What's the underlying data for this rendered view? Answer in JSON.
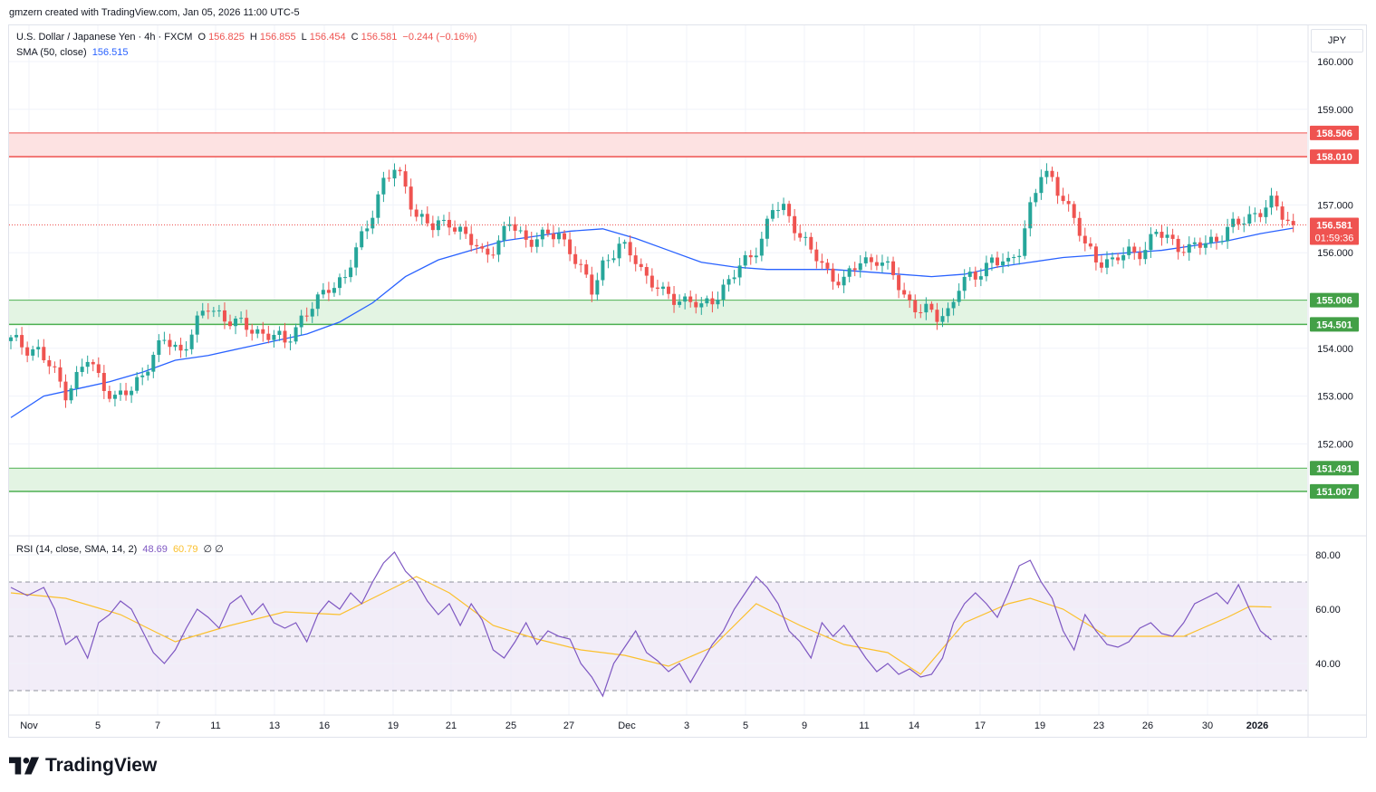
{
  "header": {
    "attribution": "gmzern created with TradingView.com, Jan 05, 2026 11:00 UTC-5"
  },
  "legend": {
    "symbol": "U.S. Dollar / Japanese Yen · 4h · FXCM",
    "o_label": "O",
    "o_value": "156.825",
    "h_label": "H",
    "h_value": "156.855",
    "l_label": "L",
    "l_value": "156.454",
    "c_label": "C",
    "c_value": "156.581",
    "change": "−0.244 (−0.16%)",
    "sma_label": "SMA (50, close)",
    "sma_value": "156.515",
    "rsi_label": "RSI (14, close, SMA, 14, 2)",
    "rsi_value": "48.69",
    "rsi_ma_value": "60.79",
    "rsi_extra": "∅ ∅"
  },
  "currency_button": "JPY",
  "brand": "TradingView",
  "colors": {
    "bull": "#26a69a",
    "bear": "#ef5350",
    "sma": "#2962ff",
    "rsi": "#7e57c2",
    "rsi_ma": "#fbc02d",
    "resistance_zone": "#fde2e2",
    "support_zone": "#e3f4e3"
  },
  "chart_data": [
    {
      "type": "candlestick",
      "title": "U.S. Dollar / Japanese Yen · 4h · FXCM",
      "ylim": [
        150.0,
        160.5
      ],
      "y_ticks": [
        "160.000",
        "159.000",
        "157.000",
        "156.000",
        "154.000",
        "153.000",
        "152.000"
      ],
      "x_ticks": [
        "Nov",
        "5",
        "7",
        "11",
        "13",
        "16",
        "19",
        "21",
        "25",
        "27",
        "Dec",
        "3",
        "5",
        "9",
        "11",
        "14",
        "17",
        "19",
        "23",
        "26",
        "30",
        "2026"
      ],
      "grid": true,
      "zones": [
        {
          "name": "resistance",
          "low": 158.01,
          "high": 158.506,
          "low_label": "158.010",
          "high_label": "158.506",
          "color": "red"
        },
        {
          "name": "support-1",
          "low": 154.501,
          "high": 155.006,
          "low_label": "154.501",
          "high_label": "155.006",
          "color": "green"
        },
        {
          "name": "support-2",
          "low": 151.007,
          "high": 151.491,
          "low_label": "151.007",
          "high_label": "151.491",
          "color": "green"
        }
      ],
      "last_price": {
        "value": 156.581,
        "label": "156.581",
        "countdown": "01:59:36"
      },
      "close_path": [
        [
          0,
          154.15
        ],
        [
          5,
          153.95
        ],
        [
          8,
          153.45
        ],
        [
          10,
          153.1
        ],
        [
          12,
          153.4
        ],
        [
          14,
          153.75
        ],
        [
          16,
          153.4
        ],
        [
          19,
          152.95
        ],
        [
          22,
          153.1
        ],
        [
          25,
          153.7
        ],
        [
          28,
          154.15
        ],
        [
          31,
          153.95
        ],
        [
          33,
          154.35
        ],
        [
          36,
          154.85
        ],
        [
          38,
          154.75
        ],
        [
          41,
          154.5
        ],
        [
          44,
          154.4
        ],
        [
          47,
          154.3
        ],
        [
          50,
          154.1
        ],
        [
          53,
          154.65
        ],
        [
          56,
          154.95
        ],
        [
          58,
          155.3
        ],
        [
          61,
          155.5
        ],
        [
          63,
          156.0
        ],
        [
          66,
          156.9
        ],
        [
          68,
          157.5
        ],
        [
          70,
          157.7
        ],
        [
          72,
          157.4
        ],
        [
          74,
          156.8
        ],
        [
          77,
          156.5
        ],
        [
          80,
          156.7
        ],
        [
          83,
          156.3
        ],
        [
          86,
          156.0
        ],
        [
          89,
          156.2
        ],
        [
          91,
          156.6
        ],
        [
          94,
          156.3
        ],
        [
          97,
          156.3
        ],
        [
          100,
          156.4
        ],
        [
          102,
          156.1
        ],
        [
          104,
          155.6
        ],
        [
          106,
          155.2
        ],
        [
          108,
          155.8
        ],
        [
          111,
          156.1
        ],
        [
          114,
          155.9
        ],
        [
          116,
          155.5
        ],
        [
          119,
          155.1
        ],
        [
          122,
          155.05
        ],
        [
          124,
          155.0
        ],
        [
          126,
          154.8
        ],
        [
          128,
          155.05
        ],
        [
          131,
          155.4
        ],
        [
          134,
          155.8
        ],
        [
          137,
          156.3
        ],
        [
          139,
          156.9
        ],
        [
          141,
          156.9
        ],
        [
          143,
          156.6
        ],
        [
          146,
          156.0
        ],
        [
          149,
          155.6
        ],
        [
          152,
          155.4
        ],
        [
          155,
          155.8
        ],
        [
          158,
          155.9
        ],
        [
          161,
          155.5
        ],
        [
          163,
          155.1
        ],
        [
          166,
          154.8
        ],
        [
          169,
          154.65
        ],
        [
          171,
          154.8
        ],
        [
          173,
          155.3
        ],
        [
          176,
          155.5
        ],
        [
          179,
          155.9
        ],
        [
          182,
          155.7
        ],
        [
          184,
          156.1
        ],
        [
          186,
          157.0
        ],
        [
          188,
          157.6
        ],
        [
          190,
          157.5
        ],
        [
          192,
          157.2
        ],
        [
          194,
          156.7
        ],
        [
          196,
          156.1
        ],
        [
          198,
          155.9
        ],
        [
          201,
          155.8
        ],
        [
          204,
          156.0
        ],
        [
          207,
          156.1
        ],
        [
          209,
          156.4
        ],
        [
          212,
          156.25
        ],
        [
          215,
          156.05
        ],
        [
          218,
          156.2
        ],
        [
          221,
          156.4
        ],
        [
          224,
          156.6
        ],
        [
          227,
          156.85
        ],
        [
          230,
          157.0
        ],
        [
          232,
          156.8
        ],
        [
          234,
          156.581
        ]
      ],
      "sma50_path": [
        [
          0,
          152.55
        ],
        [
          6,
          153.0
        ],
        [
          12,
          153.15
        ],
        [
          18,
          153.3
        ],
        [
          24,
          153.5
        ],
        [
          30,
          153.75
        ],
        [
          36,
          153.85
        ],
        [
          42,
          154.0
        ],
        [
          48,
          154.15
        ],
        [
          54,
          154.3
        ],
        [
          60,
          154.55
        ],
        [
          66,
          154.95
        ],
        [
          72,
          155.5
        ],
        [
          78,
          155.85
        ],
        [
          84,
          156.05
        ],
        [
          90,
          156.25
        ],
        [
          96,
          156.35
        ],
        [
          102,
          156.45
        ],
        [
          108,
          156.5
        ],
        [
          114,
          156.3
        ],
        [
          120,
          156.05
        ],
        [
          126,
          155.8
        ],
        [
          132,
          155.7
        ],
        [
          138,
          155.65
        ],
        [
          144,
          155.65
        ],
        [
          150,
          155.65
        ],
        [
          156,
          155.6
        ],
        [
          162,
          155.55
        ],
        [
          168,
          155.5
        ],
        [
          174,
          155.55
        ],
        [
          180,
          155.7
        ],
        [
          186,
          155.8
        ],
        [
          192,
          155.9
        ],
        [
          198,
          155.95
        ],
        [
          204,
          156.0
        ],
        [
          210,
          156.05
        ],
        [
          216,
          156.15
        ],
        [
          222,
          156.25
        ],
        [
          228,
          156.4
        ],
        [
          234,
          156.515
        ]
      ]
    },
    {
      "type": "line",
      "title": "RSI (14, close, SMA, 14, 2)",
      "ylim": [
        25,
        85
      ],
      "y_ticks": [
        "80.00",
        "60.00",
        "40.00"
      ],
      "bands": {
        "upper": 70,
        "middle": 50,
        "lower": 30
      },
      "series": [
        {
          "name": "RSI",
          "points": [
            [
              0,
              68
            ],
            [
              3,
              65
            ],
            [
              6,
              68
            ],
            [
              8,
              60
            ],
            [
              10,
              47
            ],
            [
              12,
              50
            ],
            [
              14,
              42
            ],
            [
              16,
              55
            ],
            [
              18,
              58
            ],
            [
              20,
              63
            ],
            [
              22,
              60
            ],
            [
              24,
              52
            ],
            [
              26,
              44
            ],
            [
              28,
              40
            ],
            [
              30,
              45
            ],
            [
              32,
              53
            ],
            [
              34,
              60
            ],
            [
              36,
              57
            ],
            [
              38,
              53
            ],
            [
              40,
              62
            ],
            [
              42,
              65
            ],
            [
              44,
              58
            ],
            [
              46,
              62
            ],
            [
              48,
              55
            ],
            [
              50,
              53
            ],
            [
              52,
              55
            ],
            [
              54,
              48
            ],
            [
              56,
              58
            ],
            [
              58,
              63
            ],
            [
              60,
              60
            ],
            [
              62,
              66
            ],
            [
              64,
              62
            ],
            [
              66,
              70
            ],
            [
              68,
              77
            ],
            [
              70,
              81
            ],
            [
              72,
              74
            ],
            [
              74,
              70
            ],
            [
              76,
              63
            ],
            [
              78,
              58
            ],
            [
              80,
              62
            ],
            [
              82,
              54
            ],
            [
              84,
              62
            ],
            [
              86,
              56
            ],
            [
              88,
              45
            ],
            [
              90,
              42
            ],
            [
              92,
              48
            ],
            [
              94,
              55
            ],
            [
              96,
              47
            ],
            [
              98,
              52
            ],
            [
              100,
              50
            ],
            [
              102,
              49
            ],
            [
              104,
              40
            ],
            [
              106,
              35
            ],
            [
              108,
              28
            ],
            [
              110,
              40
            ],
            [
              112,
              46
            ],
            [
              114,
              52
            ],
            [
              116,
              44
            ],
            [
              118,
              41
            ],
            [
              120,
              37
            ],
            [
              122,
              40
            ],
            [
              124,
              33
            ],
            [
              126,
              40
            ],
            [
              128,
              47
            ],
            [
              130,
              52
            ],
            [
              132,
              60
            ],
            [
              134,
              66
            ],
            [
              136,
              72
            ],
            [
              138,
              68
            ],
            [
              140,
              62
            ],
            [
              142,
              52
            ],
            [
              144,
              48
            ],
            [
              146,
              42
            ],
            [
              148,
              55
            ],
            [
              150,
              50
            ],
            [
              152,
              54
            ],
            [
              154,
              48
            ],
            [
              156,
              42
            ],
            [
              158,
              37
            ],
            [
              160,
              40
            ],
            [
              162,
              36
            ],
            [
              164,
              38
            ],
            [
              166,
              35
            ],
            [
              168,
              36
            ],
            [
              170,
              42
            ],
            [
              172,
              55
            ],
            [
              174,
              62
            ],
            [
              176,
              66
            ],
            [
              178,
              62
            ],
            [
              180,
              57
            ],
            [
              182,
              66
            ],
            [
              184,
              76
            ],
            [
              186,
              78
            ],
            [
              188,
              70
            ],
            [
              190,
              64
            ],
            [
              192,
              52
            ],
            [
              194,
              45
            ],
            [
              196,
              58
            ],
            [
              198,
              52
            ],
            [
              200,
              47
            ],
            [
              202,
              46
            ],
            [
              204,
              48
            ],
            [
              206,
              53
            ],
            [
              208,
              55
            ],
            [
              210,
              51
            ],
            [
              212,
              50
            ],
            [
              214,
              55
            ],
            [
              216,
              62
            ],
            [
              218,
              64
            ],
            [
              220,
              66
            ],
            [
              222,
              62
            ],
            [
              224,
              69
            ],
            [
              226,
              60
            ],
            [
              228,
              52
            ],
            [
              230,
              48.69
            ]
          ]
        },
        {
          "name": "RSI-based MA",
          "points": [
            [
              0,
              66
            ],
            [
              10,
              64
            ],
            [
              20,
              58
            ],
            [
              30,
              48
            ],
            [
              40,
              54
            ],
            [
              50,
              59
            ],
            [
              60,
              58
            ],
            [
              68,
              66
            ],
            [
              74,
              72
            ],
            [
              80,
              66
            ],
            [
              88,
              54
            ],
            [
              96,
              49
            ],
            [
              104,
              45
            ],
            [
              112,
              43
            ],
            [
              120,
              39
            ],
            [
              128,
              46
            ],
            [
              136,
              62
            ],
            [
              144,
              54
            ],
            [
              152,
              47
            ],
            [
              160,
              44
            ],
            [
              166,
              36
            ],
            [
              174,
              55
            ],
            [
              182,
              62
            ],
            [
              186,
              64
            ],
            [
              192,
              60
            ],
            [
              200,
              50
            ],
            [
              206,
              50
            ],
            [
              214,
              50
            ],
            [
              222,
              57
            ],
            [
              226,
              61
            ],
            [
              230,
              60.79
            ]
          ]
        }
      ]
    }
  ]
}
